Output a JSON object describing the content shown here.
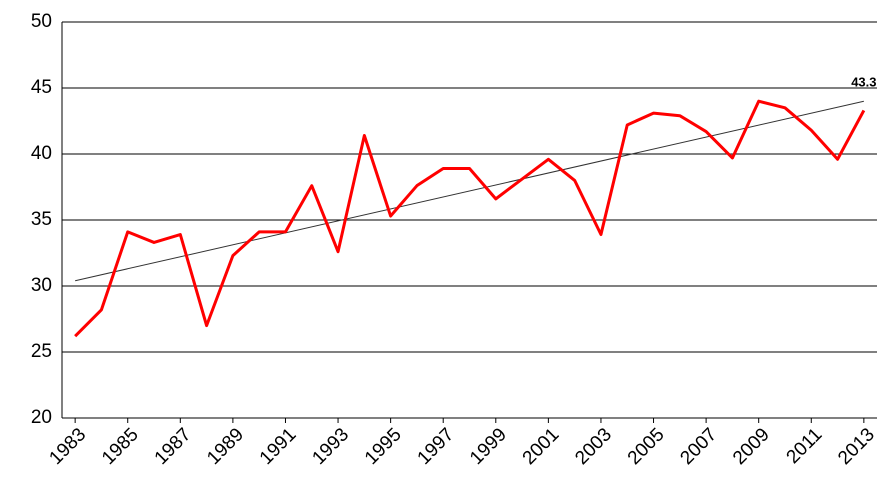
{
  "chart_data": {
    "type": "line",
    "x": [
      1983,
      1984,
      1985,
      1986,
      1987,
      1988,
      1989,
      1990,
      1991,
      1992,
      1993,
      1994,
      1995,
      1996,
      1997,
      1998,
      1999,
      2000,
      2001,
      2002,
      2003,
      2004,
      2005,
      2006,
      2007,
      2008,
      2009,
      2010,
      2011,
      2012,
      2013
    ],
    "values": [
      26.2,
      28.2,
      34.1,
      33.3,
      33.9,
      27.0,
      32.3,
      34.1,
      34.1,
      37.6,
      32.6,
      41.4,
      35.3,
      37.6,
      38.9,
      38.9,
      36.6,
      38.1,
      39.6,
      38.0,
      33.9,
      42.2,
      43.1,
      42.9,
      41.7,
      39.7,
      44.0,
      43.5,
      41.8,
      39.6,
      43.3
    ],
    "color": "#ff0000",
    "data_label": "last",
    "trendline": {
      "x": [
        1983,
        2013
      ],
      "values": [
        30.4,
        44.0
      ],
      "color": "#333333"
    },
    "xlim": [
      1982.5,
      2013.5
    ],
    "xticks": [
      1983,
      1985,
      1987,
      1989,
      1991,
      1993,
      1995,
      1997,
      1999,
      2001,
      2003,
      2005,
      2007,
      2009,
      2011,
      2013
    ],
    "ylim": [
      20,
      50
    ],
    "yticks": [
      20,
      25,
      30,
      35,
      40,
      45,
      50
    ],
    "grid": true
  }
}
